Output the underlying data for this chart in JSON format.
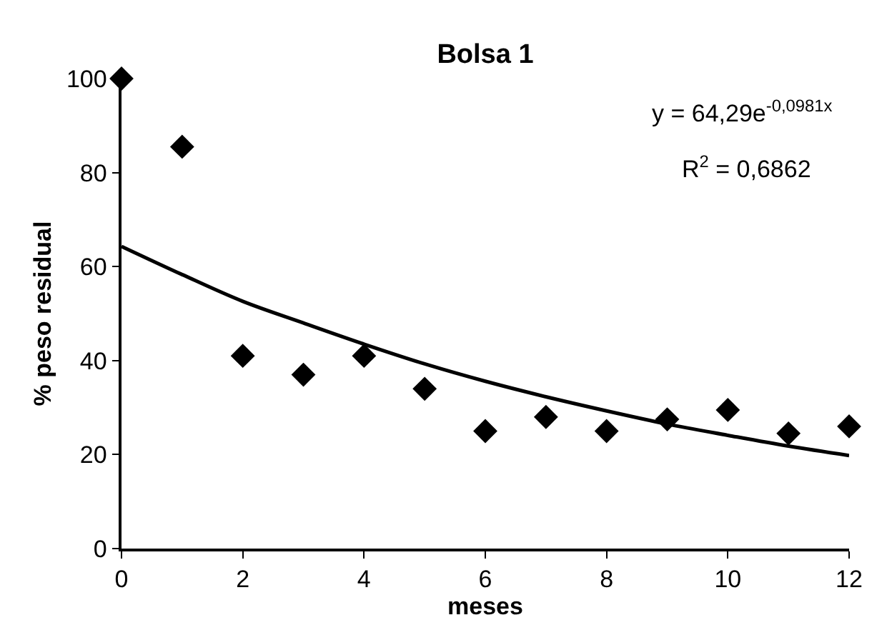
{
  "chart_data": {
    "type": "scatter",
    "title": "Bolsa 1",
    "xlabel": "meses",
    "ylabel": "% peso residual",
    "xlim": [
      0,
      12
    ],
    "xticks": [
      0,
      2,
      4,
      6,
      8,
      10,
      12
    ],
    "ylim": [
      0,
      100
    ],
    "yticks": [
      0,
      20,
      40,
      60,
      80,
      100
    ],
    "marker": "diamond",
    "series": [
      {
        "color": "#000000",
        "x": [
          0,
          1,
          2,
          3,
          4,
          5,
          6,
          7,
          8,
          9,
          10,
          11,
          12
        ],
        "values": [
          100,
          85.5,
          41,
          37,
          41,
          34,
          25,
          28,
          25,
          27.5,
          29.5,
          24.5,
          26
        ]
      },
      {
        "type": "line",
        "color": "#000000",
        "marker": "none",
        "line_style": "solid",
        "x": [
          0,
          1,
          2,
          3,
          4,
          5,
          6,
          7,
          8,
          9,
          10,
          11,
          12
        ],
        "values": [
          64.3,
          58.3,
          52.6,
          48.0,
          43.5,
          39.3,
          35.6,
          32.3,
          29.3,
          26.5,
          24.1,
          21.8,
          19.8
        ]
      }
    ],
    "annotations": [
      "y = 64,29e$^{-0,0981x}$",
      "R$^{2}$ = 0,6862"
    ]
  }
}
